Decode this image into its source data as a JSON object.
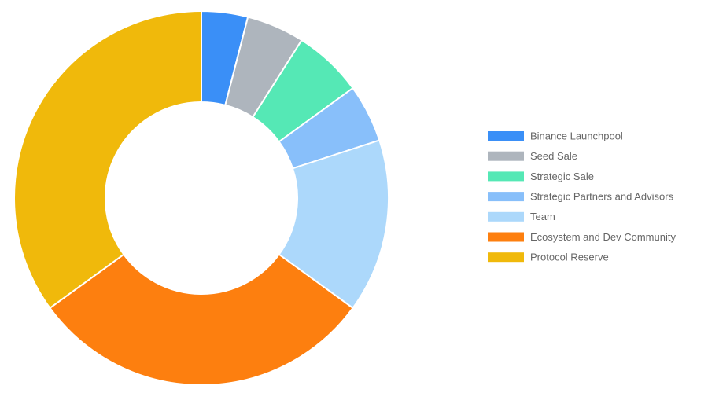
{
  "chart_data": {
    "type": "donut",
    "categories": [
      "Binance Launchpool",
      "Seed Sale",
      "Strategic Sale",
      "Strategic Partners and Advisors",
      "Team",
      "Ecosystem and Dev Community",
      "Protocol Reserve"
    ],
    "values": [
      4,
      5,
      6,
      5,
      15,
      30,
      35
    ],
    "colors": [
      "#3a8ff7",
      "#aeb5bd",
      "#55e8b5",
      "#88bffa",
      "#acd8fb",
      "#fd7f0f",
      "#f0b90b"
    ],
    "legend": "right"
  }
}
